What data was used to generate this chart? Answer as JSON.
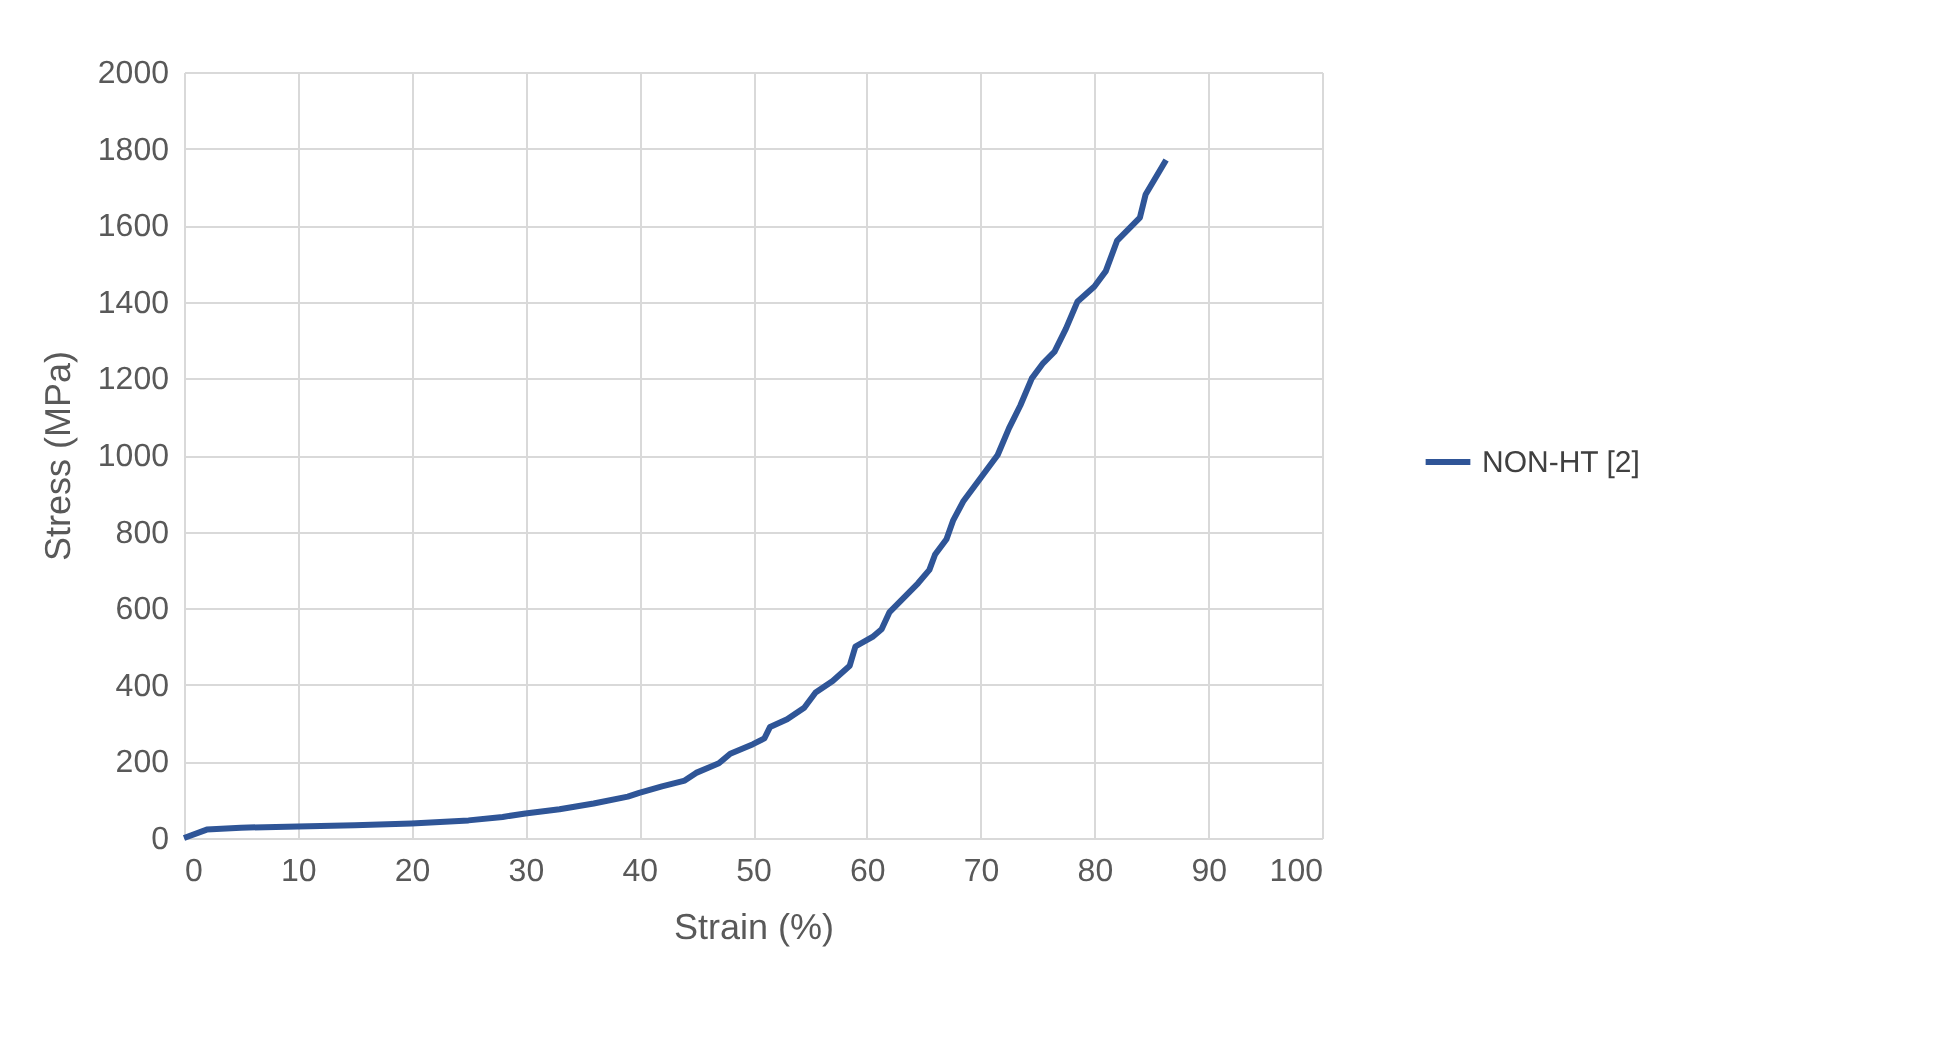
{
  "chart_data": {
    "type": "line",
    "xlabel": "Strain (%)",
    "ylabel": "Stress (MPa)",
    "xlim": [
      0,
      100
    ],
    "xticks": [
      0,
      10,
      20,
      30,
      40,
      50,
      60,
      70,
      80,
      90,
      100
    ],
    "ylim": [
      0,
      2000
    ],
    "yticks": [
      0,
      200,
      400,
      600,
      800,
      1000,
      1200,
      1400,
      1600,
      1800,
      2000
    ],
    "grid": true,
    "legend": "right",
    "marker": "none",
    "line_style": "solid",
    "series": [
      {
        "name": "NON-HT [2]",
        "color": "#2f5597",
        "x": [
          0,
          2,
          5,
          10,
          15,
          20,
          25,
          28,
          30,
          33,
          36,
          39,
          40,
          42,
          44,
          45,
          47,
          48,
          50,
          51,
          51.5,
          53,
          54.5,
          55.5,
          57,
          58.5,
          59,
          60.5,
          61.3,
          62,
          63,
          64.5,
          65.5,
          66,
          67,
          67.6,
          68.5,
          70,
          71.5,
          72.5,
          73.5,
          74.5,
          75.5,
          76.5,
          77.5,
          78.5,
          80,
          81,
          82,
          83,
          84,
          84.5,
          86.3
        ],
        "values": [
          0,
          22,
          27,
          30,
          33,
          38,
          46,
          55,
          64,
          75,
          90,
          108,
          118,
          135,
          150,
          170,
          195,
          220,
          245,
          260,
          290,
          310,
          340,
          380,
          410,
          450,
          500,
          525,
          545,
          590,
          620,
          665,
          700,
          740,
          780,
          830,
          880,
          940,
          1000,
          1070,
          1130,
          1200,
          1240,
          1270,
          1330,
          1400,
          1440,
          1480,
          1560,
          1590,
          1620,
          1680,
          1770
        ]
      }
    ]
  }
}
